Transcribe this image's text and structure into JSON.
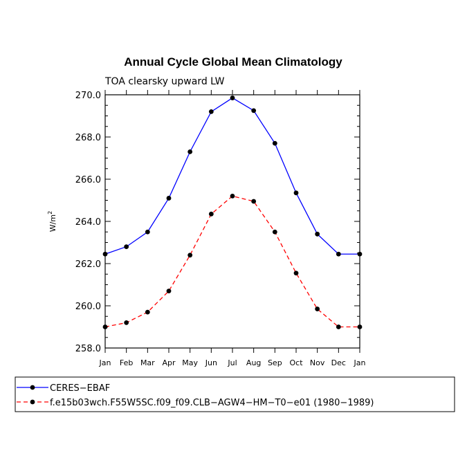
{
  "chart_data": {
    "type": "line",
    "title": "Annual Cycle Global Mean Climatology",
    "subtitle": "TOA clearsky upward LW",
    "ylabel": "W/m",
    "ylabel_superscript": "2",
    "ylim": [
      258.0,
      270.0
    ],
    "yticks": [
      "258.0",
      "260.0",
      "262.0",
      "264.0",
      "266.0",
      "268.0",
      "270.0"
    ],
    "categories": [
      "Jan",
      "Feb",
      "Mar",
      "Apr",
      "May",
      "Jun",
      "Jul",
      "Aug",
      "Sep",
      "Oct",
      "Nov",
      "Dec",
      "Jan"
    ],
    "series": [
      {
        "name": "CERES−EBAF",
        "color": "#0000ff",
        "dash": "solid",
        "values": [
          262.45,
          262.8,
          263.5,
          265.1,
          267.3,
          269.2,
          269.85,
          269.25,
          267.7,
          265.35,
          263.4,
          262.45,
          262.45
        ]
      },
      {
        "name": "f.e15b03wch.F55W5SC.f09_f09.CLB−AGW4−HM−T0−e01 (1980−1989)",
        "color": "#ff0000",
        "dash": "dashed",
        "values": [
          259.0,
          259.2,
          259.7,
          260.7,
          262.4,
          264.35,
          265.2,
          264.95,
          263.5,
          261.55,
          259.85,
          259.0,
          259.0
        ]
      }
    ],
    "legend": "bottom"
  }
}
